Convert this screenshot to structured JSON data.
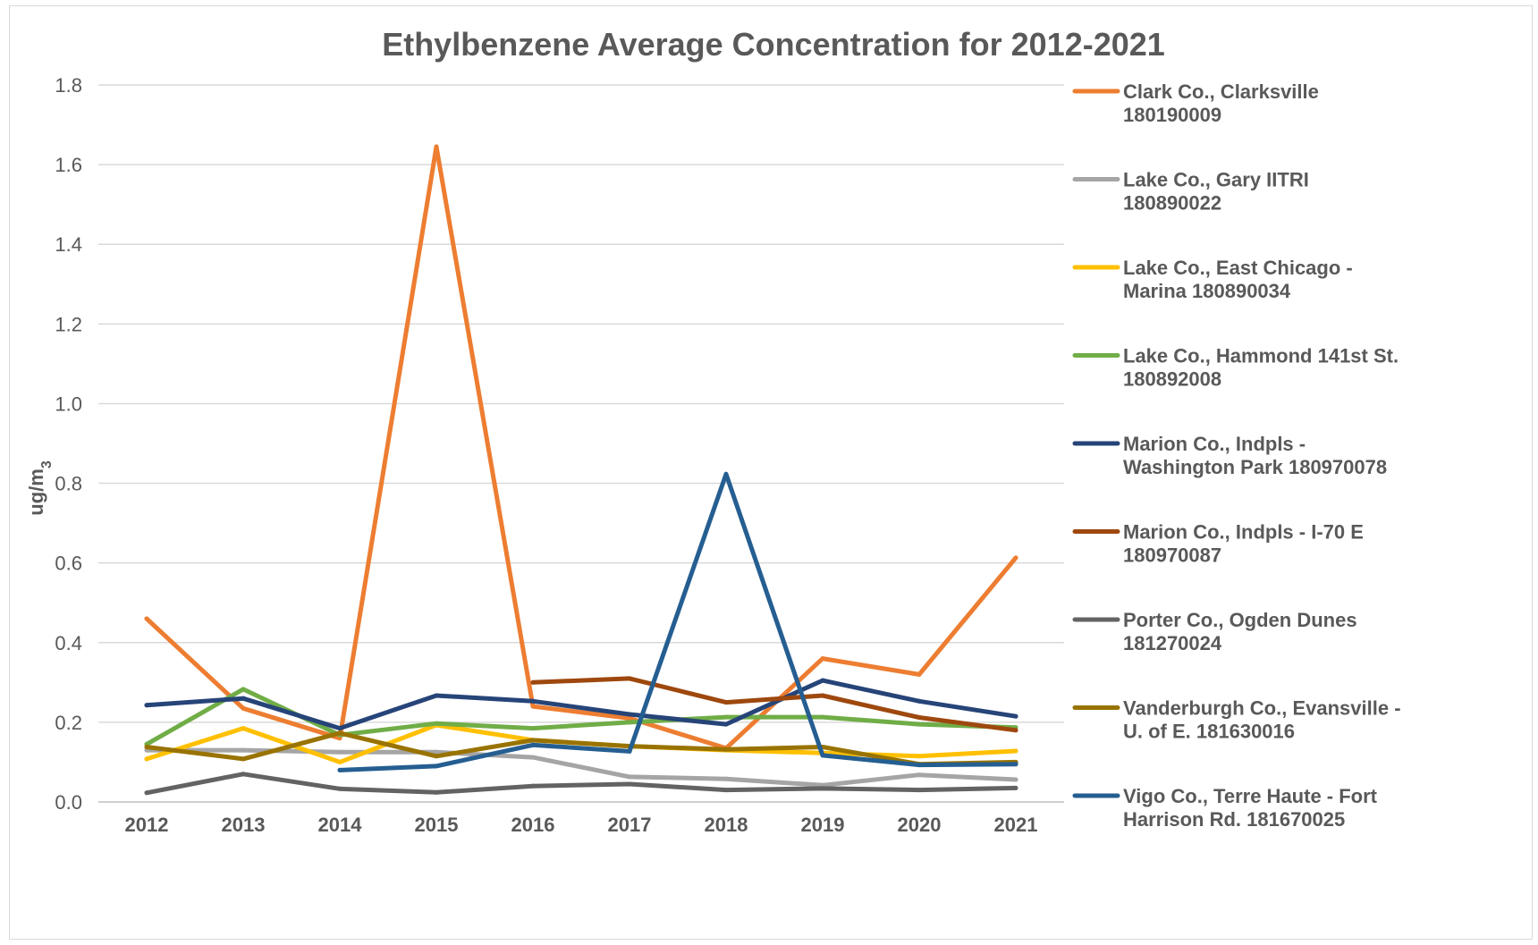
{
  "chart_data": {
    "type": "line",
    "title": "Ethylbenzene Average Concentration for 2012-2021",
    "ylabel": "ug/m",
    "ylabel_sub": "3",
    "xlabel": "",
    "categories": [
      "2012",
      "2013",
      "2014",
      "2015",
      "2016",
      "2017",
      "2018",
      "2019",
      "2020",
      "2021"
    ],
    "ylim": [
      0,
      1.8
    ],
    "yticks": [
      "0.0",
      "0.2",
      "0.4",
      "0.6",
      "0.8",
      "1.0",
      "1.2",
      "1.4",
      "1.6",
      "1.8"
    ],
    "grid": true,
    "legend_position": "right",
    "series": [
      {
        "name": "Clark Co., Clarksville 180190009",
        "legend_lines": [
          "Clark Co., Clarksville",
          "180190009"
        ],
        "color": "#ED7D31",
        "values": [
          0.46,
          0.235,
          0.16,
          1.645,
          0.24,
          0.21,
          0.135,
          0.36,
          0.32,
          0.613
        ]
      },
      {
        "name": "Lake Co., Gary IITRI 180890022",
        "legend_lines": [
          "Lake Co., Gary IITRI",
          "180890022"
        ],
        "color": "#A5A5A5",
        "values": [
          0.13,
          0.13,
          0.125,
          0.125,
          0.112,
          0.063,
          0.058,
          0.042,
          0.068,
          0.056
        ]
      },
      {
        "name": "Lake Co., East Chicago - Marina 180890034",
        "legend_lines": [
          "Lake Co., East Chicago -",
          "Marina 180890034"
        ],
        "color": "#FFC000",
        "values": [
          0.108,
          0.185,
          0.1,
          0.193,
          0.155,
          0.14,
          0.13,
          0.123,
          0.115,
          0.128
        ]
      },
      {
        "name": "Lake Co., Hammond 141st St. 180892008",
        "legend_lines": [
          "Lake Co., Hammond 141st St.",
          "180892008"
        ],
        "color": "#70AD47",
        "values": [
          0.145,
          0.283,
          0.168,
          0.197,
          0.185,
          0.2,
          0.213,
          0.213,
          0.195,
          0.187
        ]
      },
      {
        "name": "Marion Co., Indpls - Washington Park 180970078",
        "legend_lines": [
          "Marion Co., Indpls -",
          "Washington Park 180970078"
        ],
        "color": "#264478",
        "values": [
          0.243,
          0.26,
          0.185,
          0.267,
          0.253,
          0.22,
          0.195,
          0.305,
          0.253,
          0.215
        ]
      },
      {
        "name": "Marion Co., Indpls - I-70 E 180970087",
        "legend_lines": [
          "Marion Co., Indpls - I-70 E",
          "180970087"
        ],
        "color": "#9E480E",
        "values": [
          null,
          null,
          null,
          null,
          0.3,
          0.31,
          0.25,
          0.267,
          0.212,
          0.18
        ]
      },
      {
        "name": "Porter Co., Ogden Dunes 181270024",
        "legend_lines": [
          "Porter Co., Ogden Dunes",
          "181270024"
        ],
        "color": "#636363",
        "values": [
          0.023,
          0.07,
          0.033,
          0.024,
          0.04,
          0.045,
          0.03,
          0.034,
          0.03,
          0.035
        ]
      },
      {
        "name": "Vanderburgh Co., Evansville - U. of E. 181630016",
        "legend_lines": [
          "Vanderburgh Co., Evansville -",
          "U. of E. 181630016"
        ],
        "color": "#997300",
        "values": [
          0.138,
          0.108,
          0.173,
          0.115,
          0.155,
          0.14,
          0.132,
          0.138,
          0.095,
          0.1
        ]
      },
      {
        "name": "Vigo Co., Terre Haute - Fort Harrison Rd. 181670025",
        "legend_lines": [
          "Vigo Co., Terre Haute - Fort",
          "Harrison Rd. 181670025"
        ],
        "color": "#255E91",
        "values": [
          null,
          null,
          0.08,
          0.09,
          0.143,
          0.127,
          0.823,
          0.117,
          0.093,
          0.095
        ]
      }
    ]
  }
}
